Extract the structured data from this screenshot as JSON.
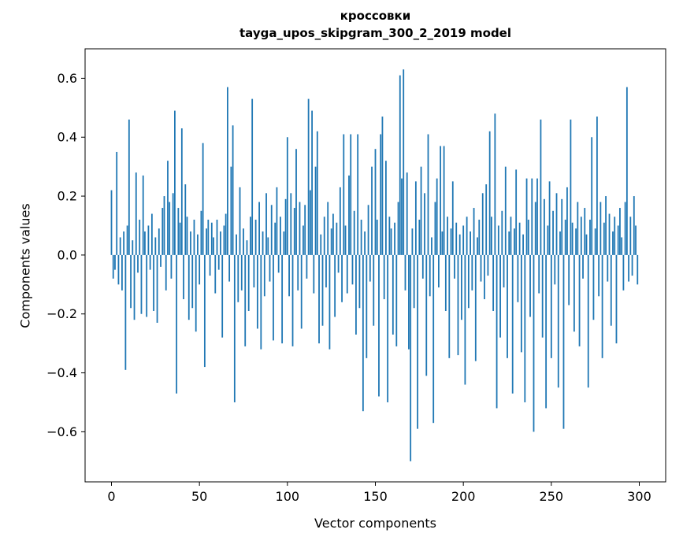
{
  "figure": {
    "background": "#ffffff"
  },
  "chart_data": {
    "type": "bar",
    "title_line1": "кроссовки",
    "title_line2": "tayga_upos_skipgram_300_2_2019 model",
    "xlabel": "Vector components",
    "ylabel": "Components values",
    "bar_color": "#1f77b4",
    "spine_color": "#000000",
    "xlim": [
      -15,
      315
    ],
    "ylim": [
      -0.77,
      0.7
    ],
    "xtick_values": [
      0,
      50,
      100,
      150,
      200,
      250,
      300
    ],
    "xtick_labels": [
      "0",
      "50",
      "100",
      "150",
      "200",
      "250",
      "300"
    ],
    "ytick_values": [
      0.6,
      0.4,
      0.2,
      0.0,
      -0.2,
      -0.4,
      -0.6
    ],
    "ytick_labels": [
      "0.6",
      "0.4",
      "0.2",
      "0.0",
      "−0.2",
      "−0.4",
      "−0.6"
    ],
    "x_start": 0,
    "values": [
      0.22,
      -0.08,
      -0.05,
      0.35,
      -0.1,
      0.06,
      -0.12,
      0.08,
      -0.39,
      0.1,
      0.46,
      -0.18,
      0.05,
      -0.22,
      0.28,
      -0.06,
      0.12,
      -0.2,
      0.27,
      0.08,
      -0.21,
      0.1,
      -0.05,
      0.14,
      -0.19,
      0.06,
      -0.23,
      0.09,
      -0.04,
      0.16,
      0.2,
      -0.12,
      0.32,
      0.18,
      -0.08,
      0.21,
      0.49,
      -0.47,
      0.16,
      0.11,
      0.43,
      -0.15,
      0.24,
      0.13,
      -0.22,
      0.08,
      -0.18,
      0.12,
      -0.26,
      0.07,
      -0.1,
      0.15,
      0.38,
      -0.38,
      0.09,
      0.12,
      -0.07,
      0.11,
      0.06,
      -0.13,
      0.12,
      -0.05,
      0.08,
      -0.28,
      0.1,
      0.14,
      0.57,
      -0.09,
      0.3,
      0.44,
      -0.5,
      0.07,
      -0.16,
      0.23,
      -0.12,
      0.09,
      -0.31,
      0.05,
      -0.19,
      0.13,
      0.53,
      -0.11,
      0.12,
      -0.25,
      0.18,
      -0.32,
      0.08,
      -0.14,
      0.21,
      0.06,
      -0.09,
      0.17,
      -0.29,
      0.11,
      0.23,
      -0.06,
      0.13,
      -0.3,
      0.08,
      0.19,
      0.4,
      -0.14,
      0.21,
      -0.31,
      0.16,
      0.36,
      -0.12,
      0.18,
      -0.25,
      0.1,
      0.17,
      -0.08,
      0.53,
      0.22,
      0.49,
      -0.13,
      0.3,
      0.42,
      -0.3,
      0.07,
      -0.24,
      0.13,
      -0.11,
      0.18,
      -0.32,
      0.09,
      0.14,
      -0.21,
      0.11,
      -0.06,
      0.23,
      -0.16,
      0.41,
      0.1,
      -0.13,
      0.27,
      0.41,
      -0.1,
      0.15,
      -0.27,
      0.41,
      -0.18,
      0.12,
      -0.53,
      0.08,
      -0.35,
      0.17,
      -0.09,
      0.3,
      -0.24,
      0.36,
      0.12,
      -0.48,
      0.41,
      0.47,
      -0.15,
      0.32,
      -0.5,
      0.13,
      0.09,
      -0.27,
      0.11,
      -0.31,
      0.18,
      0.61,
      0.26,
      0.63,
      -0.12,
      0.28,
      -0.32,
      -0.7,
      0.09,
      -0.18,
      0.25,
      -0.59,
      0.12,
      0.3,
      -0.08,
      0.21,
      -0.41,
      0.41,
      -0.14,
      0.06,
      -0.57,
      0.18,
      0.26,
      -0.11,
      0.37,
      0.08,
      0.37,
      -0.19,
      0.13,
      -0.35,
      0.09,
      0.25,
      -0.08,
      0.11,
      -0.34,
      0.07,
      -0.22,
      0.1,
      -0.44,
      0.13,
      -0.18,
      0.08,
      -0.12,
      0.16,
      -0.36,
      0.06,
      0.12,
      -0.09,
      0.21,
      -0.15,
      0.24,
      -0.07,
      0.42,
      0.13,
      -0.19,
      0.48,
      -0.52,
      0.1,
      -0.28,
      0.15,
      -0.11,
      0.3,
      -0.35,
      0.08,
      0.13,
      -0.47,
      0.09,
      0.29,
      -0.16,
      0.11,
      -0.33,
      0.07,
      -0.5,
      0.26,
      0.12,
      -0.21,
      0.26,
      -0.6,
      0.18,
      0.26,
      -0.13,
      0.46,
      -0.28,
      0.19,
      -0.52,
      0.1,
      0.25,
      -0.35,
      0.15,
      -0.1,
      0.21,
      -0.45,
      0.08,
      0.19,
      -0.59,
      0.12,
      0.23,
      -0.17,
      0.46,
      0.11,
      -0.26,
      0.09,
      0.18,
      -0.31,
      0.13,
      -0.08,
      0.16,
      0.07,
      -0.45,
      0.12,
      0.4,
      -0.22,
      0.09,
      0.47,
      -0.14,
      0.18,
      -0.35,
      0.11,
      0.2,
      -0.09,
      0.14,
      -0.24,
      0.08,
      0.13,
      -0.3,
      0.1,
      0.16,
      0.06,
      -0.12,
      0.18,
      0.57,
      -0.09,
      0.13,
      -0.07,
      0.2,
      0.1,
      -0.1
    ]
  }
}
